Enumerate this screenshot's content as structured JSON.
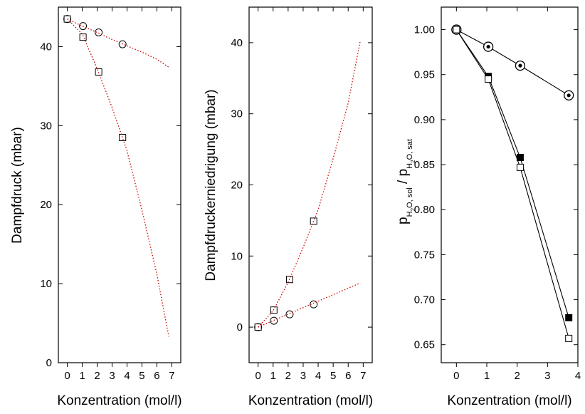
{
  "chart_data": [
    {
      "type": "scatter",
      "title": "",
      "xlabel": "Konzentration (mol/l)",
      "ylabel": "Dampfdruck (mbar)",
      "xlim": [
        -0.6,
        7.6
      ],
      "ylim": [
        0,
        45
      ],
      "xticks": [
        0,
        1,
        2,
        3,
        4,
        5,
        6,
        7
      ],
      "yticks": [
        0,
        10,
        20,
        30,
        40
      ],
      "series": [
        {
          "marker": "circle",
          "fill": "open",
          "color": "#000000",
          "x": [
            0,
            1.05,
            2.1,
            3.7
          ],
          "y": [
            43.5,
            42.6,
            41.8,
            40.3
          ]
        },
        {
          "marker": "square",
          "fill": "open",
          "color": "#000000",
          "x": [
            0,
            1.05,
            2.1,
            3.7
          ],
          "y": [
            43.5,
            41.2,
            36.8,
            28.5
          ]
        },
        {
          "marker": "none",
          "line": "dotted",
          "color": "#cc0000",
          "x": [
            0,
            1,
            2,
            3,
            4,
            5,
            6,
            6.8
          ],
          "y": [
            43.5,
            42.6,
            41.8,
            40.9,
            40.1,
            39.3,
            38.4,
            37.4
          ]
        },
        {
          "marker": "none",
          "line": "dotted",
          "color": "#cc0000",
          "x": [
            0,
            1,
            2,
            3,
            4,
            5,
            6,
            6.8
          ],
          "y": [
            43.5,
            41.6,
            37.2,
            32.3,
            26.8,
            19.3,
            11.2,
            3.3
          ]
        }
      ],
      "grid": false,
      "legend": "none"
    },
    {
      "type": "scatter",
      "title": "",
      "xlabel": "Konzentration (mol/l)",
      "ylabel": "Dampfdruckerniedrigung (mbar)",
      "xlim": [
        -0.6,
        7.6
      ],
      "ylim": [
        -5,
        45
      ],
      "xticks": [
        0,
        1,
        2,
        3,
        4,
        5,
        6,
        7
      ],
      "yticks": [
        0,
        10,
        20,
        30,
        40
      ],
      "series": [
        {
          "marker": "circle",
          "fill": "open",
          "color": "#000000",
          "x": [
            0,
            1.05,
            2.1,
            3.7
          ],
          "y": [
            0,
            0.9,
            1.8,
            3.2
          ]
        },
        {
          "marker": "square",
          "fill": "open",
          "color": "#000000",
          "x": [
            0,
            1.05,
            2.1,
            3.7
          ],
          "y": [
            0,
            2.4,
            6.7,
            14.9
          ]
        },
        {
          "marker": "none",
          "line": "dotted",
          "color": "#cc0000",
          "x": [
            0,
            6.8
          ],
          "y": [
            0,
            6.2
          ]
        },
        {
          "marker": "none",
          "line": "dotted",
          "color": "#cc0000",
          "x": [
            0,
            1,
            2,
            3,
            4,
            5,
            6,
            6.8
          ],
          "y": [
            0,
            2.3,
            6.3,
            11.2,
            16.5,
            23.7,
            31.5,
            40.2
          ]
        }
      ],
      "grid": false,
      "legend": "none"
    },
    {
      "type": "line",
      "title": "",
      "xlabel": "Konzentration (mol/l)",
      "ylabel": "pH2O, sol / pH2O, sat",
      "xlim": [
        -0.5,
        4.0
      ],
      "ylim": [
        0.63,
        1.025
      ],
      "xticks": [
        0,
        1,
        2,
        3,
        4
      ],
      "yticks": [
        0.65,
        0.7,
        0.75,
        0.8,
        0.85,
        0.9,
        0.95,
        1.0
      ],
      "ytick_labels": [
        "0.65",
        "0.70",
        "0.75",
        "0.80",
        "0.85",
        "0.90",
        "0.95",
        "1.00"
      ],
      "series": [
        {
          "marker": "circle-dot",
          "fill": "open",
          "color": "#000000",
          "x": [
            0,
            1.05,
            2.1,
            3.7
          ],
          "y": [
            1.0,
            0.981,
            0.96,
            0.927
          ]
        },
        {
          "marker": "square",
          "fill": "filled",
          "color": "#000000",
          "x": [
            0,
            1.05,
            2.1,
            3.7
          ],
          "y": [
            1.0,
            0.948,
            0.858,
            0.68
          ]
        },
        {
          "marker": "square",
          "fill": "open",
          "color": "#000000",
          "x": [
            0,
            1.05,
            2.1,
            3.7
          ],
          "y": [
            1.0,
            0.945,
            0.847,
            0.657
          ]
        }
      ],
      "grid": false,
      "legend": "none"
    }
  ]
}
